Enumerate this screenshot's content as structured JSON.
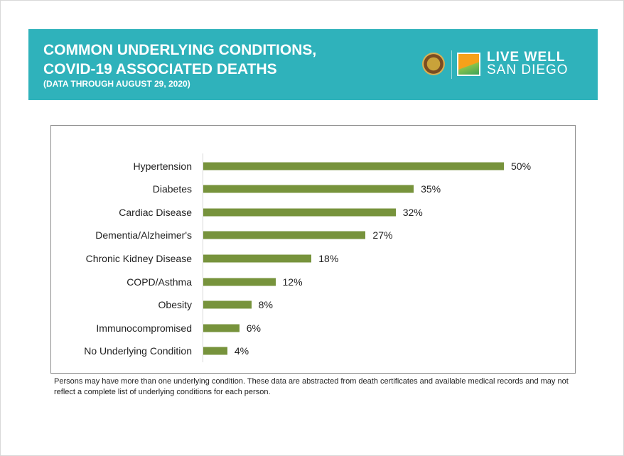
{
  "header": {
    "title_line1": "COMMON UNDERLYING CONDITIONS,",
    "title_line2": "COVID-19 ASSOCIATED DEATHS",
    "subtitle": "(DATA THROUGH AUGUST 29, 2020)",
    "logo_line1": "LIVE WELL",
    "logo_line2": "SAN DIEGO",
    "banner_color": "#2fb2bb"
  },
  "chart_data": {
    "type": "bar",
    "orientation": "horizontal",
    "categories": [
      "Hypertension",
      "Diabetes",
      "Cardiac Disease",
      "Dementia/Alzheimer's",
      "Chronic Kidney Disease",
      "COPD/Asthma",
      "Obesity",
      "Immunocompromised",
      "No Underlying Condition"
    ],
    "values": [
      50,
      35,
      32,
      27,
      18,
      12,
      8,
      6,
      4
    ],
    "labels": [
      "50%",
      "35%",
      "32%",
      "27%",
      "18%",
      "12%",
      "8%",
      "6%",
      "4%"
    ],
    "unit": "%",
    "bar_color": "#77933c",
    "grid": false
  },
  "footnote": "Persons may have more than one underlying condition. These data are abstracted from death certificates and available medical records and may not reflect a complete list of underlying conditions for each person."
}
